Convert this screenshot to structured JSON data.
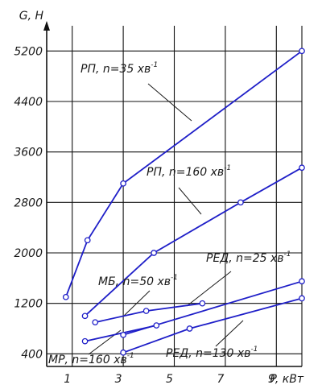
{
  "chart_data": {
    "type": "line",
    "xlabel": "P, кВт",
    "ylabel": "G, H",
    "xlim": [
      0,
      10
    ],
    "ylim": [
      200,
      5600
    ],
    "x_ticks": [
      1,
      3,
      5,
      7,
      9
    ],
    "y_ticks": [
      400,
      1200,
      2000,
      2800,
      3600,
      4400,
      5200
    ],
    "x_tick_labels": [
      "1",
      "3",
      "5",
      "7",
      "9"
    ],
    "y_tick_labels": [
      "400",
      "1200",
      "2000",
      "2800",
      "3600",
      "4400",
      "5200"
    ],
    "grid": true,
    "series": [
      {
        "name": "РП, n=35 хв",
        "sup": "-1",
        "points": [
          [
            0.75,
            1300
          ],
          [
            1.6,
            2200
          ],
          [
            3.0,
            3100
          ],
          [
            10.0,
            5200
          ]
        ]
      },
      {
        "name": "РП, n=160 хв",
        "sup": "-1",
        "points": [
          [
            1.5,
            1000
          ],
          [
            4.2,
            2000
          ],
          [
            7.6,
            2800
          ],
          [
            10.0,
            3350
          ]
        ]
      },
      {
        "name": "РЕД, n=25 хв",
        "sup": "-1",
        "points": [
          [
            3.0,
            700
          ],
          [
            10.0,
            1550
          ]
        ]
      },
      {
        "name": "МБ, n=50 хв",
        "sup": "-1",
        "points": [
          [
            1.9,
            900
          ],
          [
            3.9,
            1080
          ],
          [
            6.1,
            1200
          ]
        ]
      },
      {
        "name": "МР, n=160 хв",
        "sup": "-1",
        "points": [
          [
            1.5,
            600
          ],
          [
            4.3,
            850
          ]
        ]
      },
      {
        "name": "РЕД, n=130 хв",
        "sup": "-1",
        "points": [
          [
            3.0,
            420
          ],
          [
            5.6,
            800
          ],
          [
            10.0,
            1280
          ]
        ]
      }
    ]
  }
}
